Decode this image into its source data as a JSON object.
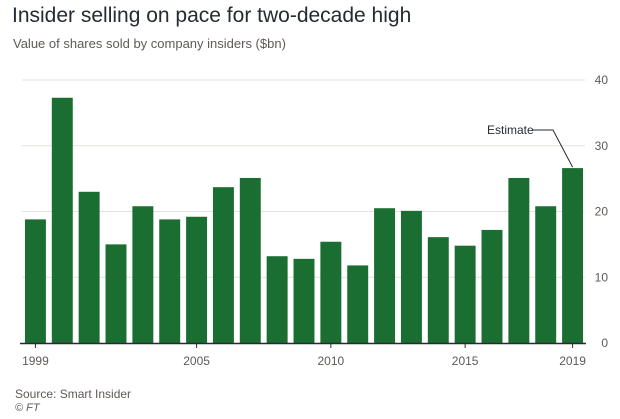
{
  "header": {
    "title": "Insider selling on pace for two-decade high",
    "subtitle": "Value of shares sold by company insiders ($bn)"
  },
  "footer": {
    "source": "Source: Smart Insider",
    "credit": "© FT"
  },
  "colors": {
    "bar": "#1a6e32",
    "gridline": "#e6e1dc",
    "axis": "#262a33",
    "text": "#5e5a57"
  },
  "chart_data": {
    "type": "bar",
    "title": "",
    "xlabel": "",
    "ylabel": "",
    "categories": [
      "1999",
      "2000",
      "2001",
      "2002",
      "2003",
      "2004",
      "2005",
      "2006",
      "2007",
      "2008",
      "2009",
      "2010",
      "2011",
      "2012",
      "2013",
      "2014",
      "2015",
      "2016",
      "2017",
      "2018",
      "2019"
    ],
    "values": [
      18.8,
      37.3,
      23.0,
      15.0,
      20.8,
      18.8,
      19.2,
      23.7,
      25.1,
      13.2,
      12.8,
      15.4,
      11.8,
      20.5,
      20.1,
      16.1,
      14.8,
      17.2,
      25.1,
      20.8,
      26.6
    ],
    "ylim": [
      0,
      40
    ],
    "yticks": [
      "0",
      "10",
      "20",
      "30",
      "40"
    ],
    "xtick_labels": [
      {
        "category": "1999",
        "label": "1999"
      },
      {
        "category": "2005",
        "label": "2005"
      },
      {
        "category": "2010",
        "label": "2010"
      },
      {
        "category": "2015",
        "label": "2015"
      },
      {
        "category": "2019",
        "label": "2019"
      }
    ],
    "annotation": {
      "category": "2019",
      "text": "Estimate"
    },
    "grid": true
  }
}
